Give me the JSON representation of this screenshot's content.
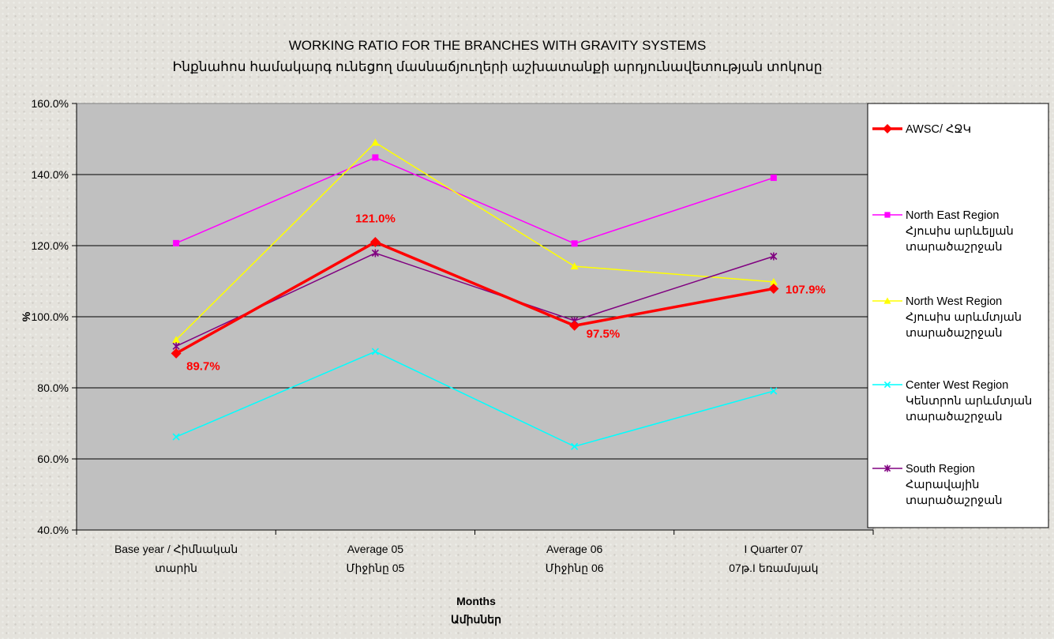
{
  "chart_data": {
    "type": "line",
    "title": "WORKING RATIO FOR THE BRANCHES WITH GRAVITY SYSTEMS",
    "subtitle": "Ինքնահոս համակարգ ունեցող մասնաճյուղերի աշխատանքի արդյունավետության տոկոսը",
    "xlabel": [
      "Months",
      "Ամիսներ"
    ],
    "ylabel": "%",
    "ylim": [
      40,
      160
    ],
    "yticks": [
      "40.0%",
      "60.0%",
      "80.0%",
      "100.0%",
      "120.0%",
      "140.0%",
      "160.0%"
    ],
    "grid": true,
    "legend_position": "right",
    "plot_background": "#c0c0c0",
    "categories": [
      [
        "Base year / Հիմնական",
        "տարին"
      ],
      [
        "Average 05",
        "Միջինը 05"
      ],
      [
        "Average 06",
        "Միջինը 06"
      ],
      [
        "I Quarter 07",
        "07թ.I եռամսյակ"
      ]
    ],
    "series": [
      {
        "name": [
          "AWSC/ ՀՋԿ"
        ],
        "values": [
          89.7,
          121.0,
          97.5,
          107.9
        ],
        "color": "#ff0000",
        "marker": "diamond",
        "width": 3.5,
        "labels": [
          "89.7%",
          "121.0%",
          "97.5%",
          "107.9%"
        ]
      },
      {
        "name": [
          "North East Region",
          "Հյուսիս արևելյան",
          "տարածաշրջան"
        ],
        "values": [
          120.7,
          144.8,
          120.6,
          139.1
        ],
        "color": "#ff00ff",
        "marker": "square",
        "width": 1.5
      },
      {
        "name": [
          "North West Region",
          "Հյուսիս արևմտյան",
          "տարածաշրջան"
        ],
        "values": [
          93.5,
          149.0,
          114.2,
          109.8
        ],
        "color": "#ffff00",
        "marker": "triangle",
        "width": 1.5
      },
      {
        "name": [
          "Center West Region",
          "Կենտրոն արևմտյան",
          "տարածաշրջան"
        ],
        "values": [
          66.2,
          90.2,
          63.5,
          79.1
        ],
        "color": "#00ffff",
        "marker": "x",
        "width": 1.5
      },
      {
        "name": [
          "South Region",
          "Հարավային",
          "տարածաշրջան"
        ],
        "values": [
          91.7,
          117.9,
          98.9,
          117.0
        ],
        "color": "#800080",
        "marker": "star",
        "width": 1.5
      }
    ]
  }
}
